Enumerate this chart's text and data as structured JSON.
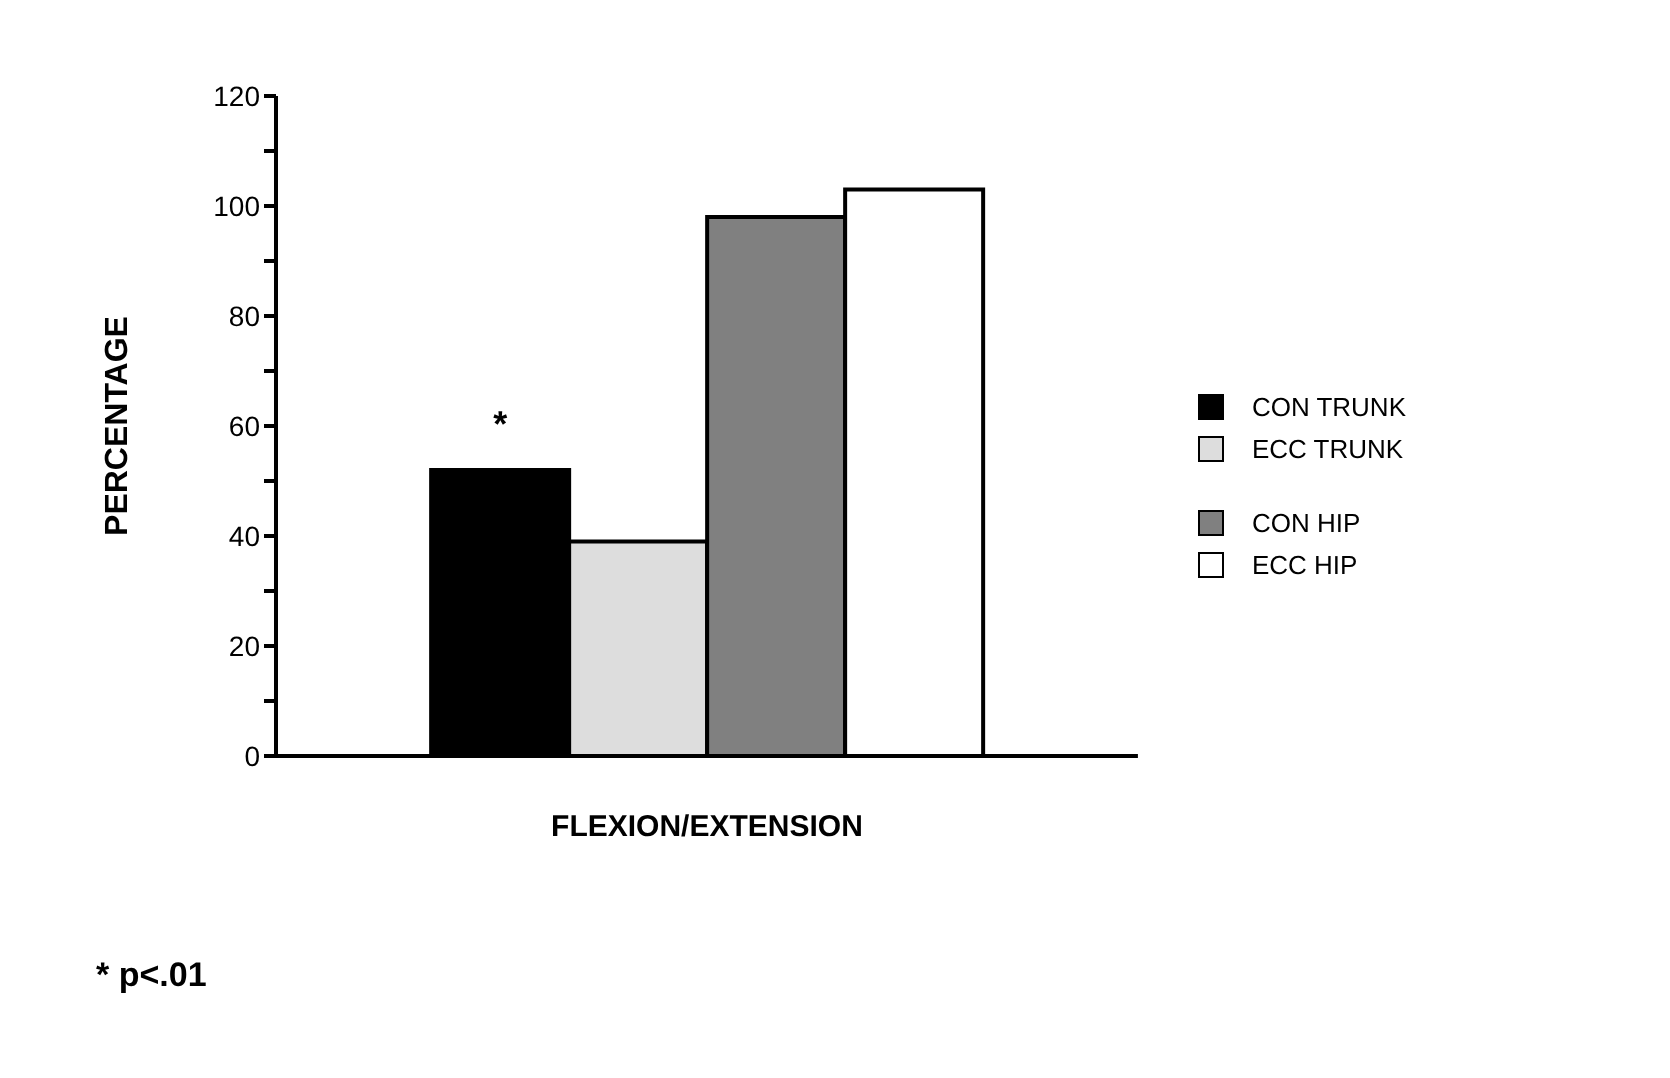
{
  "chart_data": {
    "type": "bar",
    "xlabel": "FLEXION/EXTENSION",
    "ylabel": "PERCENTAGE",
    "categories": [
      null
    ],
    "series": [
      {
        "name": "CON TRUNK",
        "color": "#000000",
        "values": [
          52
        ]
      },
      {
        "name": "ECC TRUNK",
        "color": "#dddddd",
        "values": [
          39
        ]
      },
      {
        "name": "CON HIP",
        "color": "#808080",
        "values": [
          98
        ]
      },
      {
        "name": "ECC HIP",
        "color": "#ffffff",
        "values": [
          103
        ]
      }
    ],
    "ylim": [
      0,
      120
    ],
    "yticks": [
      0,
      {
        "value": 10,
        "label": null
      },
      20,
      {
        "value": 30,
        "label": null
      },
      40,
      {
        "value": 50,
        "label": null
      },
      60,
      {
        "value": 70,
        "label": null
      },
      80,
      {
        "value": 90,
        "label": null
      },
      100,
      {
        "value": 110,
        "label": null
      },
      120
    ],
    "legend": "right",
    "annotations": [
      "*",
      "* p<.01"
    ]
  }
}
